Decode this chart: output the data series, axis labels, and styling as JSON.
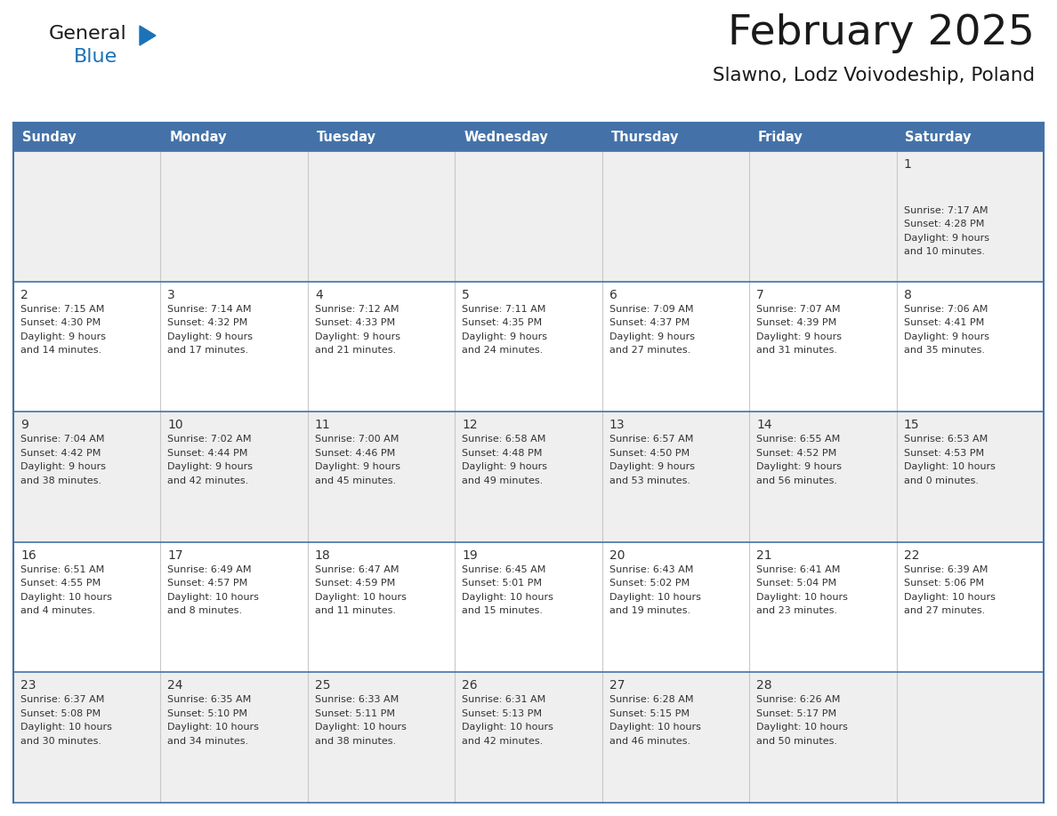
{
  "title": "February 2025",
  "subtitle": "Slawno, Lodz Voivodeship, Poland",
  "header_color": "#4472a8",
  "header_text_color": "#ffffff",
  "weekdays": [
    "Sunday",
    "Monday",
    "Tuesday",
    "Wednesday",
    "Thursday",
    "Friday",
    "Saturday"
  ],
  "bg_color": "#ffffff",
  "cell_bg_even": "#efefef",
  "cell_bg_odd": "#ffffff",
  "line_color": "#4472a8",
  "text_color": "#333333",
  "days": [
    {
      "day": 1,
      "col": 6,
      "row": 0,
      "sunrise": "7:17 AM",
      "sunset": "4:28 PM",
      "daylight": "9 hours and 10 minutes."
    },
    {
      "day": 2,
      "col": 0,
      "row": 1,
      "sunrise": "7:15 AM",
      "sunset": "4:30 PM",
      "daylight": "9 hours and 14 minutes."
    },
    {
      "day": 3,
      "col": 1,
      "row": 1,
      "sunrise": "7:14 AM",
      "sunset": "4:32 PM",
      "daylight": "9 hours and 17 minutes."
    },
    {
      "day": 4,
      "col": 2,
      "row": 1,
      "sunrise": "7:12 AM",
      "sunset": "4:33 PM",
      "daylight": "9 hours and 21 minutes."
    },
    {
      "day": 5,
      "col": 3,
      "row": 1,
      "sunrise": "7:11 AM",
      "sunset": "4:35 PM",
      "daylight": "9 hours and 24 minutes."
    },
    {
      "day": 6,
      "col": 4,
      "row": 1,
      "sunrise": "7:09 AM",
      "sunset": "4:37 PM",
      "daylight": "9 hours and 27 minutes."
    },
    {
      "day": 7,
      "col": 5,
      "row": 1,
      "sunrise": "7:07 AM",
      "sunset": "4:39 PM",
      "daylight": "9 hours and 31 minutes."
    },
    {
      "day": 8,
      "col": 6,
      "row": 1,
      "sunrise": "7:06 AM",
      "sunset": "4:41 PM",
      "daylight": "9 hours and 35 minutes."
    },
    {
      "day": 9,
      "col": 0,
      "row": 2,
      "sunrise": "7:04 AM",
      "sunset": "4:42 PM",
      "daylight": "9 hours and 38 minutes."
    },
    {
      "day": 10,
      "col": 1,
      "row": 2,
      "sunrise": "7:02 AM",
      "sunset": "4:44 PM",
      "daylight": "9 hours and 42 minutes."
    },
    {
      "day": 11,
      "col": 2,
      "row": 2,
      "sunrise": "7:00 AM",
      "sunset": "4:46 PM",
      "daylight": "9 hours and 45 minutes."
    },
    {
      "day": 12,
      "col": 3,
      "row": 2,
      "sunrise": "6:58 AM",
      "sunset": "4:48 PM",
      "daylight": "9 hours and 49 minutes."
    },
    {
      "day": 13,
      "col": 4,
      "row": 2,
      "sunrise": "6:57 AM",
      "sunset": "4:50 PM",
      "daylight": "9 hours and 53 minutes."
    },
    {
      "day": 14,
      "col": 5,
      "row": 2,
      "sunrise": "6:55 AM",
      "sunset": "4:52 PM",
      "daylight": "9 hours and 56 minutes."
    },
    {
      "day": 15,
      "col": 6,
      "row": 2,
      "sunrise": "6:53 AM",
      "sunset": "4:53 PM",
      "daylight": "10 hours and 0 minutes."
    },
    {
      "day": 16,
      "col": 0,
      "row": 3,
      "sunrise": "6:51 AM",
      "sunset": "4:55 PM",
      "daylight": "10 hours and 4 minutes."
    },
    {
      "day": 17,
      "col": 1,
      "row": 3,
      "sunrise": "6:49 AM",
      "sunset": "4:57 PM",
      "daylight": "10 hours and 8 minutes."
    },
    {
      "day": 18,
      "col": 2,
      "row": 3,
      "sunrise": "6:47 AM",
      "sunset": "4:59 PM",
      "daylight": "10 hours and 11 minutes."
    },
    {
      "day": 19,
      "col": 3,
      "row": 3,
      "sunrise": "6:45 AM",
      "sunset": "5:01 PM",
      "daylight": "10 hours and 15 minutes."
    },
    {
      "day": 20,
      "col": 4,
      "row": 3,
      "sunrise": "6:43 AM",
      "sunset": "5:02 PM",
      "daylight": "10 hours and 19 minutes."
    },
    {
      "day": 21,
      "col": 5,
      "row": 3,
      "sunrise": "6:41 AM",
      "sunset": "5:04 PM",
      "daylight": "10 hours and 23 minutes."
    },
    {
      "day": 22,
      "col": 6,
      "row": 3,
      "sunrise": "6:39 AM",
      "sunset": "5:06 PM",
      "daylight": "10 hours and 27 minutes."
    },
    {
      "day": 23,
      "col": 0,
      "row": 4,
      "sunrise": "6:37 AM",
      "sunset": "5:08 PM",
      "daylight": "10 hours and 30 minutes."
    },
    {
      "day": 24,
      "col": 1,
      "row": 4,
      "sunrise": "6:35 AM",
      "sunset": "5:10 PM",
      "daylight": "10 hours and 34 minutes."
    },
    {
      "day": 25,
      "col": 2,
      "row": 4,
      "sunrise": "6:33 AM",
      "sunset": "5:11 PM",
      "daylight": "10 hours and 38 minutes."
    },
    {
      "day": 26,
      "col": 3,
      "row": 4,
      "sunrise": "6:31 AM",
      "sunset": "5:13 PM",
      "daylight": "10 hours and 42 minutes."
    },
    {
      "day": 27,
      "col": 4,
      "row": 4,
      "sunrise": "6:28 AM",
      "sunset": "5:15 PM",
      "daylight": "10 hours and 46 minutes."
    },
    {
      "day": 28,
      "col": 5,
      "row": 4,
      "sunrise": "6:26 AM",
      "sunset": "5:17 PM",
      "daylight": "10 hours and 50 minutes."
    }
  ],
  "num_rows": 5,
  "num_cols": 7,
  "logo_text1": "General",
  "logo_text2": "Blue",
  "logo_color1": "#1a1a1a",
  "logo_color2": "#1a72b8",
  "logo_triangle_color": "#1a72b8"
}
